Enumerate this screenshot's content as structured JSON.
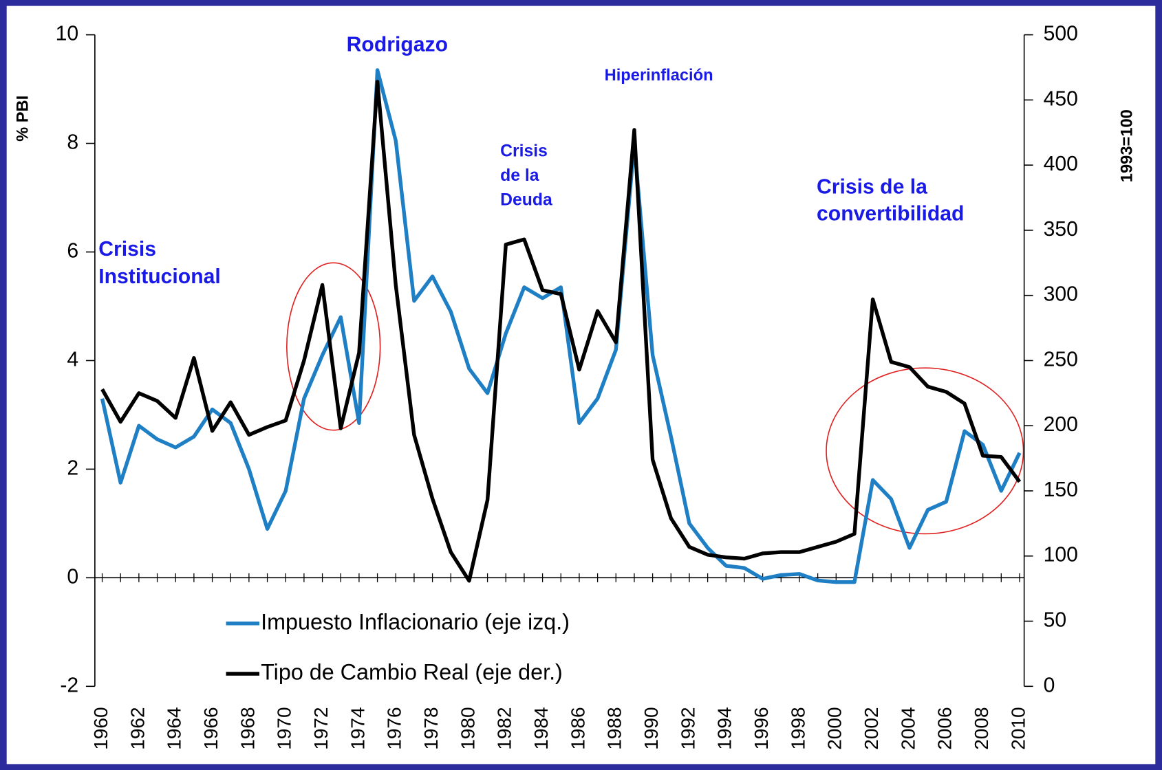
{
  "chart_data": {
    "type": "line",
    "ylabel": "% PBI",
    "y2label": "1993=100",
    "x": [
      1960,
      1961,
      1962,
      1963,
      1964,
      1965,
      1966,
      1967,
      1968,
      1969,
      1970,
      1971,
      1972,
      1973,
      1974,
      1975,
      1976,
      1977,
      1978,
      1979,
      1980,
      1981,
      1982,
      1983,
      1984,
      1985,
      1986,
      1987,
      1988,
      1989,
      1990,
      1991,
      1992,
      1993,
      1994,
      1995,
      1996,
      1997,
      1998,
      1999,
      2000,
      2001,
      2002,
      2003,
      2004,
      2005,
      2006,
      2007,
      2008,
      2009,
      2010
    ],
    "series": [
      {
        "name": "Impuesto Inflacionario (eje izq.)",
        "color": "#1f7fc4",
        "values": [
          3.3,
          1.75,
          2.8,
          2.55,
          2.4,
          2.6,
          3.1,
          2.85,
          2.0,
          0.9,
          1.6,
          3.3,
          4.1,
          4.8,
          2.85,
          9.35,
          8.05,
          5.1,
          5.55,
          4.9,
          3.85,
          3.4,
          4.5,
          5.35,
          5.15,
          5.35,
          2.85,
          3.3,
          4.2,
          8.0,
          4.1,
          2.6,
          1.0,
          0.55,
          0.22,
          0.18,
          -0.02,
          0.05,
          0.07,
          -0.05,
          -0.08,
          -0.08,
          1.8,
          1.45,
          0.55,
          1.25,
          1.4,
          2.7,
          2.45,
          1.6,
          2.3
        ]
      },
      {
        "name": "Tipo de Cambio Real (eje der.)",
        "color": "#000000",
        "axis": "y2",
        "values": [
          228,
          203,
          225,
          219,
          206,
          252,
          196,
          218,
          193,
          199,
          204,
          250,
          308,
          198,
          256,
          464,
          308,
          193,
          144,
          103,
          81,
          143,
          339,
          343,
          304,
          301,
          243,
          288,
          264,
          427,
          174,
          129,
          107,
          101,
          99,
          98,
          102,
          103,
          103,
          107,
          111,
          117,
          297,
          249,
          245,
          230,
          226,
          217,
          177,
          176,
          157
        ]
      }
    ],
    "xlim": [
      1959.6,
      2010.25
    ],
    "xticks": [
      1960,
      1962,
      1964,
      1966,
      1968,
      1970,
      1972,
      1974,
      1976,
      1978,
      1980,
      1982,
      1984,
      1986,
      1988,
      1990,
      1992,
      1994,
      1996,
      1998,
      2000,
      2002,
      2004,
      2006,
      2008,
      2010
    ],
    "ylim": [
      -2,
      10
    ],
    "yticks": [
      -2,
      0,
      2,
      4,
      6,
      8,
      10
    ],
    "y2lim": [
      0,
      500
    ],
    "y2ticks": [
      0,
      50,
      100,
      150,
      200,
      250,
      300,
      350,
      400,
      450,
      500
    ],
    "annotations": [
      {
        "lines": [
          "Rodrigazo"
        ]
      },
      {
        "lines": [
          "Hiperinflación"
        ]
      },
      {
        "lines": [
          "Crisis",
          "de la",
          "Deuda"
        ]
      },
      {
        "lines": [
          "Crisis de la",
          "convertibilidad"
        ]
      },
      {
        "lines": [
          "Crisis",
          "Institucional"
        ]
      }
    ],
    "legend": "lower left"
  }
}
